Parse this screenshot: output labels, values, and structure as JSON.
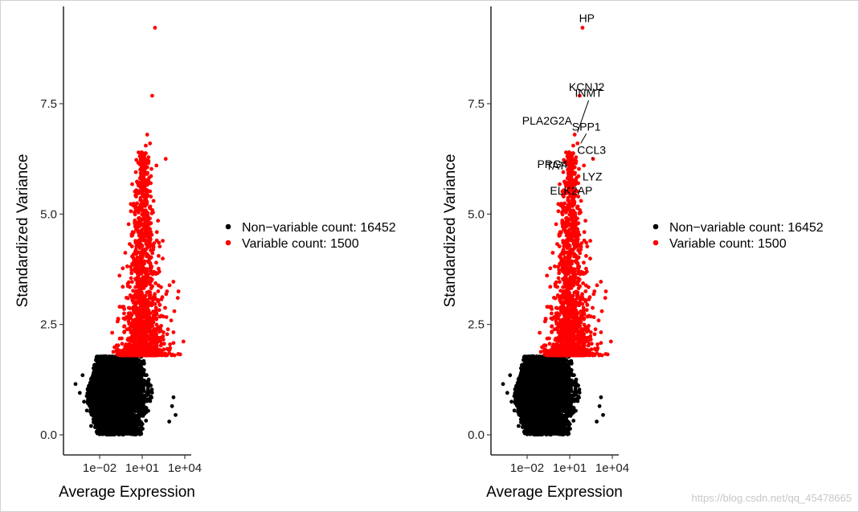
{
  "chart_data": [
    {
      "type": "scatter",
      "panel": "left",
      "xlabel": "Average Expression",
      "ylabel": "Standardized Variance",
      "x_scale": "log10",
      "x_ticks": [
        {
          "value": 0.01,
          "label": "1e−02"
        },
        {
          "value": 10,
          "label": "1e+01"
        },
        {
          "value": 10000,
          "label": "1e+04"
        }
      ],
      "y_ticks": [
        {
          "value": 0.0,
          "label": "0.0"
        },
        {
          "value": 2.5,
          "label": "2.5"
        },
        {
          "value": 5.0,
          "label": "5.0"
        },
        {
          "value": 7.5,
          "label": "7.5"
        }
      ],
      "ylim": [
        -0.35,
        9.7
      ],
      "series": [
        {
          "name": "Non−variable count: 16452",
          "color": "#000000",
          "count": 16452
        },
        {
          "name": "Variable count: 1500",
          "color": "#ff0000",
          "count": 1500
        }
      ],
      "variable_threshold": 1.8,
      "legend_position": "right",
      "labeled_points": []
    },
    {
      "type": "scatter",
      "panel": "right",
      "xlabel": "Average Expression",
      "ylabel": "Standardized Variance",
      "x_scale": "log10",
      "x_ticks": [
        {
          "value": 0.01,
          "label": "1e−02"
        },
        {
          "value": 10,
          "label": "1e+01"
        },
        {
          "value": 10000,
          "label": "1e+04"
        }
      ],
      "y_ticks": [
        {
          "value": 0.0,
          "label": "0.0"
        },
        {
          "value": 2.5,
          "label": "2.5"
        },
        {
          "value": 5.0,
          "label": "5.0"
        },
        {
          "value": 7.5,
          "label": "7.5"
        }
      ],
      "ylim": [
        -0.35,
        9.7
      ],
      "series": [
        {
          "name": "Non−variable count: 16452",
          "color": "#000000",
          "count": 16452
        },
        {
          "name": "Variable count: 1500",
          "color": "#ff0000",
          "count": 1500
        }
      ],
      "variable_threshold": 1.8,
      "legend_position": "right",
      "labeled_points": [
        {
          "gene": "HP",
          "x": 160,
          "y": 9.2
        },
        {
          "gene": "KCNJ2",
          "x": 120,
          "y": 7.65
        },
        {
          "gene": "INMT",
          "x": 35,
          "y": 6.85
        },
        {
          "gene": "PLA2G2A",
          "x": 25,
          "y": 6.55
        },
        {
          "gene": "SPP1",
          "x": 60,
          "y": 6.6
        },
        {
          "gene": "CCL3",
          "x": 450,
          "y": 6.25
        },
        {
          "gene": "PRG4",
          "x": 40,
          "y": 6.15
        },
        {
          "gene": "LYZ",
          "x": 180,
          "y": 6.0
        },
        {
          "gene": "TAT",
          "x": 14,
          "y": 6.1
        },
        {
          "gene": "ELK2AP",
          "x": 28,
          "y": 5.55
        }
      ]
    }
  ],
  "watermark": "https://blog.csdn.net/qq_45478665"
}
